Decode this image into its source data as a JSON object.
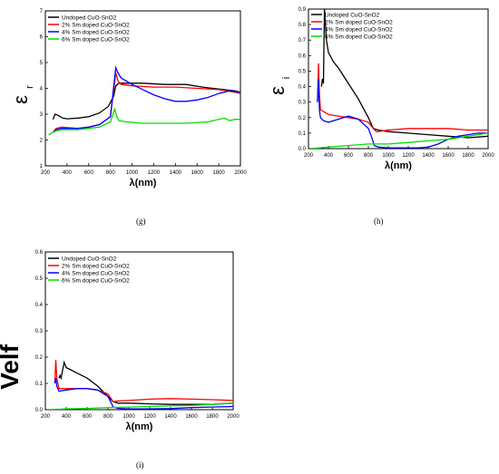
{
  "figure": {
    "panel_labels": [
      "(g)",
      "(h)",
      "(i)"
    ]
  },
  "chart_data": [
    {
      "type": "line",
      "panel": "(g)",
      "ylabel": "ε",
      "ylabel_sub": "r",
      "xlabel": "λ(nm)",
      "xlim": [
        200,
        2000
      ],
      "ylim": [
        1,
        7
      ],
      "xticks": [
        200,
        400,
        600,
        800,
        1000,
        1200,
        1400,
        1600,
        1800,
        2000
      ],
      "yticks": [
        1,
        2,
        3,
        4,
        5,
        6,
        7
      ],
      "grid": false,
      "legend": "top-left",
      "series": [
        {
          "name": "Undoped CuO-SnO2",
          "color": "#000000",
          "x": [
            270,
            290,
            320,
            360,
            400,
            500,
            600,
            700,
            780,
            830,
            850,
            880,
            950,
            1100,
            1300,
            1500,
            1650,
            1750,
            1850,
            1950,
            2000
          ],
          "y": [
            2.8,
            3.0,
            2.95,
            2.85,
            2.82,
            2.85,
            2.9,
            3.05,
            3.3,
            3.7,
            4.1,
            4.2,
            4.2,
            4.2,
            4.15,
            4.15,
            4.05,
            4.0,
            3.95,
            3.9,
            3.85
          ]
        },
        {
          "name": "2% Sm doped CuO-SnO2",
          "color": "#ff0000",
          "x": [
            270,
            300,
            350,
            400,
            500,
            600,
            700,
            800,
            850,
            870,
            900,
            1000,
            1200,
            1400,
            1600,
            1800,
            1950,
            2000
          ],
          "y": [
            2.3,
            2.45,
            2.5,
            2.48,
            2.45,
            2.5,
            2.6,
            2.9,
            4.6,
            4.3,
            4.15,
            4.1,
            4.05,
            4.05,
            4.0,
            3.95,
            3.85,
            3.8
          ]
        },
        {
          "name": "4% Sm doped CuO-SnO2",
          "color": "#0000ff",
          "x": [
            270,
            300,
            350,
            400,
            500,
            600,
            700,
            800,
            850,
            870,
            900,
            1000,
            1100,
            1200,
            1300,
            1400,
            1500,
            1600,
            1700,
            1800,
            1900,
            2000
          ],
          "y": [
            2.3,
            2.4,
            2.45,
            2.45,
            2.45,
            2.5,
            2.6,
            2.9,
            4.8,
            4.6,
            4.4,
            4.15,
            3.95,
            3.75,
            3.6,
            3.5,
            3.5,
            3.55,
            3.65,
            3.8,
            3.9,
            3.85
          ]
        },
        {
          "name": "6% Sm doped CuO-SnO2",
          "color": "#00dd00",
          "x": [
            230,
            270,
            300,
            350,
            400,
            500,
            600,
            700,
            800,
            840,
            860,
            880,
            950,
            1100,
            1300,
            1500,
            1700,
            1850,
            1900,
            1950,
            2000
          ],
          "y": [
            2.2,
            2.3,
            2.35,
            2.4,
            2.4,
            2.4,
            2.45,
            2.5,
            2.7,
            3.2,
            2.9,
            2.75,
            2.7,
            2.65,
            2.65,
            2.65,
            2.7,
            2.85,
            2.75,
            2.8,
            2.8
          ]
        }
      ]
    },
    {
      "type": "line",
      "panel": "(h)",
      "ylabel": "ε",
      "ylabel_sub": "i",
      "xlabel": "λ(nm)",
      "xlim": [
        200,
        2000
      ],
      "ylim": [
        0.0,
        0.9
      ],
      "xticks": [
        200,
        400,
        600,
        800,
        1000,
        1200,
        1400,
        1600,
        1800,
        2000
      ],
      "yticks": [
        0.0,
        0.1,
        0.2,
        0.3,
        0.4,
        0.5,
        0.6,
        0.7,
        0.8,
        0.9
      ],
      "grid": false,
      "legend": "top-left",
      "series": [
        {
          "name": "Undoped CuO-SnO2",
          "color": "#000000",
          "x": [
            330,
            340,
            350,
            360,
            380,
            400,
            450,
            500,
            600,
            700,
            800,
            850,
            900,
            1000,
            1200,
            1400,
            1600,
            1800,
            2000
          ],
          "y": [
            0.4,
            0.45,
            0.42,
            0.9,
            0.7,
            0.62,
            0.56,
            0.52,
            0.42,
            0.32,
            0.2,
            0.13,
            0.12,
            0.11,
            0.1,
            0.09,
            0.08,
            0.07,
            0.08
          ]
        },
        {
          "name": "2% Sm doped CuO-SnO2",
          "color": "#ff0000",
          "x": [
            290,
            300,
            310,
            320,
            350,
            400,
            500,
            600,
            700,
            800,
            850,
            880,
            900,
            1000,
            1200,
            1400,
            1600,
            1800,
            2000
          ],
          "y": [
            0.3,
            0.55,
            0.35,
            0.25,
            0.24,
            0.22,
            0.21,
            0.2,
            0.19,
            0.17,
            0.13,
            0.11,
            0.11,
            0.12,
            0.13,
            0.13,
            0.13,
            0.12,
            0.12
          ]
        },
        {
          "name": "4% Sm doped CuO-SnO2",
          "color": "#0000ff",
          "x": [
            290,
            300,
            310,
            320,
            350,
            400,
            500,
            600,
            700,
            800,
            830,
            860,
            900,
            1000,
            1100,
            1200,
            1300,
            1400,
            1500,
            1600,
            1700,
            1800,
            1900,
            2000
          ],
          "y": [
            0.3,
            0.45,
            0.25,
            0.2,
            0.18,
            0.17,
            0.19,
            0.21,
            0.19,
            0.13,
            0.08,
            0.02,
            0.01,
            0.005,
            0.005,
            0.005,
            0.005,
            0.01,
            0.03,
            0.06,
            0.08,
            0.09,
            0.1,
            0.1
          ]
        },
        {
          "name": "6% Sm doped CuO-SnO2",
          "color": "#00dd00",
          "x": [
            220,
            400,
            600,
            800,
            1000,
            1200,
            1400,
            1600,
            1800,
            2000
          ],
          "y": [
            0.0,
            0.01,
            0.02,
            0.03,
            0.03,
            0.04,
            0.05,
            0.06,
            0.08,
            0.1
          ]
        }
      ]
    },
    {
      "type": "line",
      "panel": "(i)",
      "ylabel": "Velf",
      "xlabel": "λ(nm)",
      "xlim": [
        200,
        2000
      ],
      "ylim": [
        0.0,
        0.6
      ],
      "xticks": [
        200,
        400,
        600,
        800,
        1000,
        1200,
        1400,
        1600,
        1800,
        2000
      ],
      "yticks": [
        0.0,
        0.1,
        0.2,
        0.3,
        0.4,
        0.5,
        0.6
      ],
      "grid": false,
      "legend": "top-left",
      "series": [
        {
          "name": "Undoped CuO-SnO2",
          "color": "#000000",
          "x": [
            330,
            340,
            350,
            380,
            400,
            450,
            500,
            600,
            700,
            800,
            850,
            900,
            1000,
            1200,
            1400,
            1600,
            1800,
            2000
          ],
          "y": [
            0.12,
            0.13,
            0.12,
            0.18,
            0.16,
            0.15,
            0.14,
            0.12,
            0.09,
            0.05,
            0.03,
            0.025,
            0.025,
            0.022,
            0.02,
            0.02,
            0.02,
            0.025
          ]
        },
        {
          "name": "2% Sm doped CuO-SnO2",
          "color": "#ff0000",
          "x": [
            290,
            300,
            310,
            330,
            400,
            500,
            600,
            700,
            800,
            850,
            900,
            1000,
            1200,
            1400,
            1600,
            1800,
            2000
          ],
          "y": [
            0.1,
            0.19,
            0.12,
            0.08,
            0.08,
            0.08,
            0.08,
            0.075,
            0.06,
            0.03,
            0.033,
            0.035,
            0.04,
            0.042,
            0.04,
            0.038,
            0.035
          ]
        },
        {
          "name": "4% Sm doped CuO-SnO2",
          "color": "#0000ff",
          "x": [
            290,
            300,
            310,
            330,
            400,
            500,
            600,
            700,
            800,
            850,
            900,
            1000,
            1200,
            1400,
            1600,
            1800,
            2000
          ],
          "y": [
            0.1,
            0.12,
            0.09,
            0.07,
            0.075,
            0.08,
            0.08,
            0.075,
            0.05,
            0.01,
            0.005,
            0.003,
            0.003,
            0.004,
            0.008,
            0.01,
            0.012
          ]
        },
        {
          "name": "6% Sm doped CuO-SnO2",
          "color": "#00dd00",
          "x": [
            220,
            400,
            600,
            800,
            1000,
            1200,
            1400,
            1600,
            1800,
            2000
          ],
          "y": [
            0.0,
            0.003,
            0.005,
            0.008,
            0.01,
            0.012,
            0.014,
            0.016,
            0.02,
            0.025
          ]
        }
      ]
    }
  ]
}
